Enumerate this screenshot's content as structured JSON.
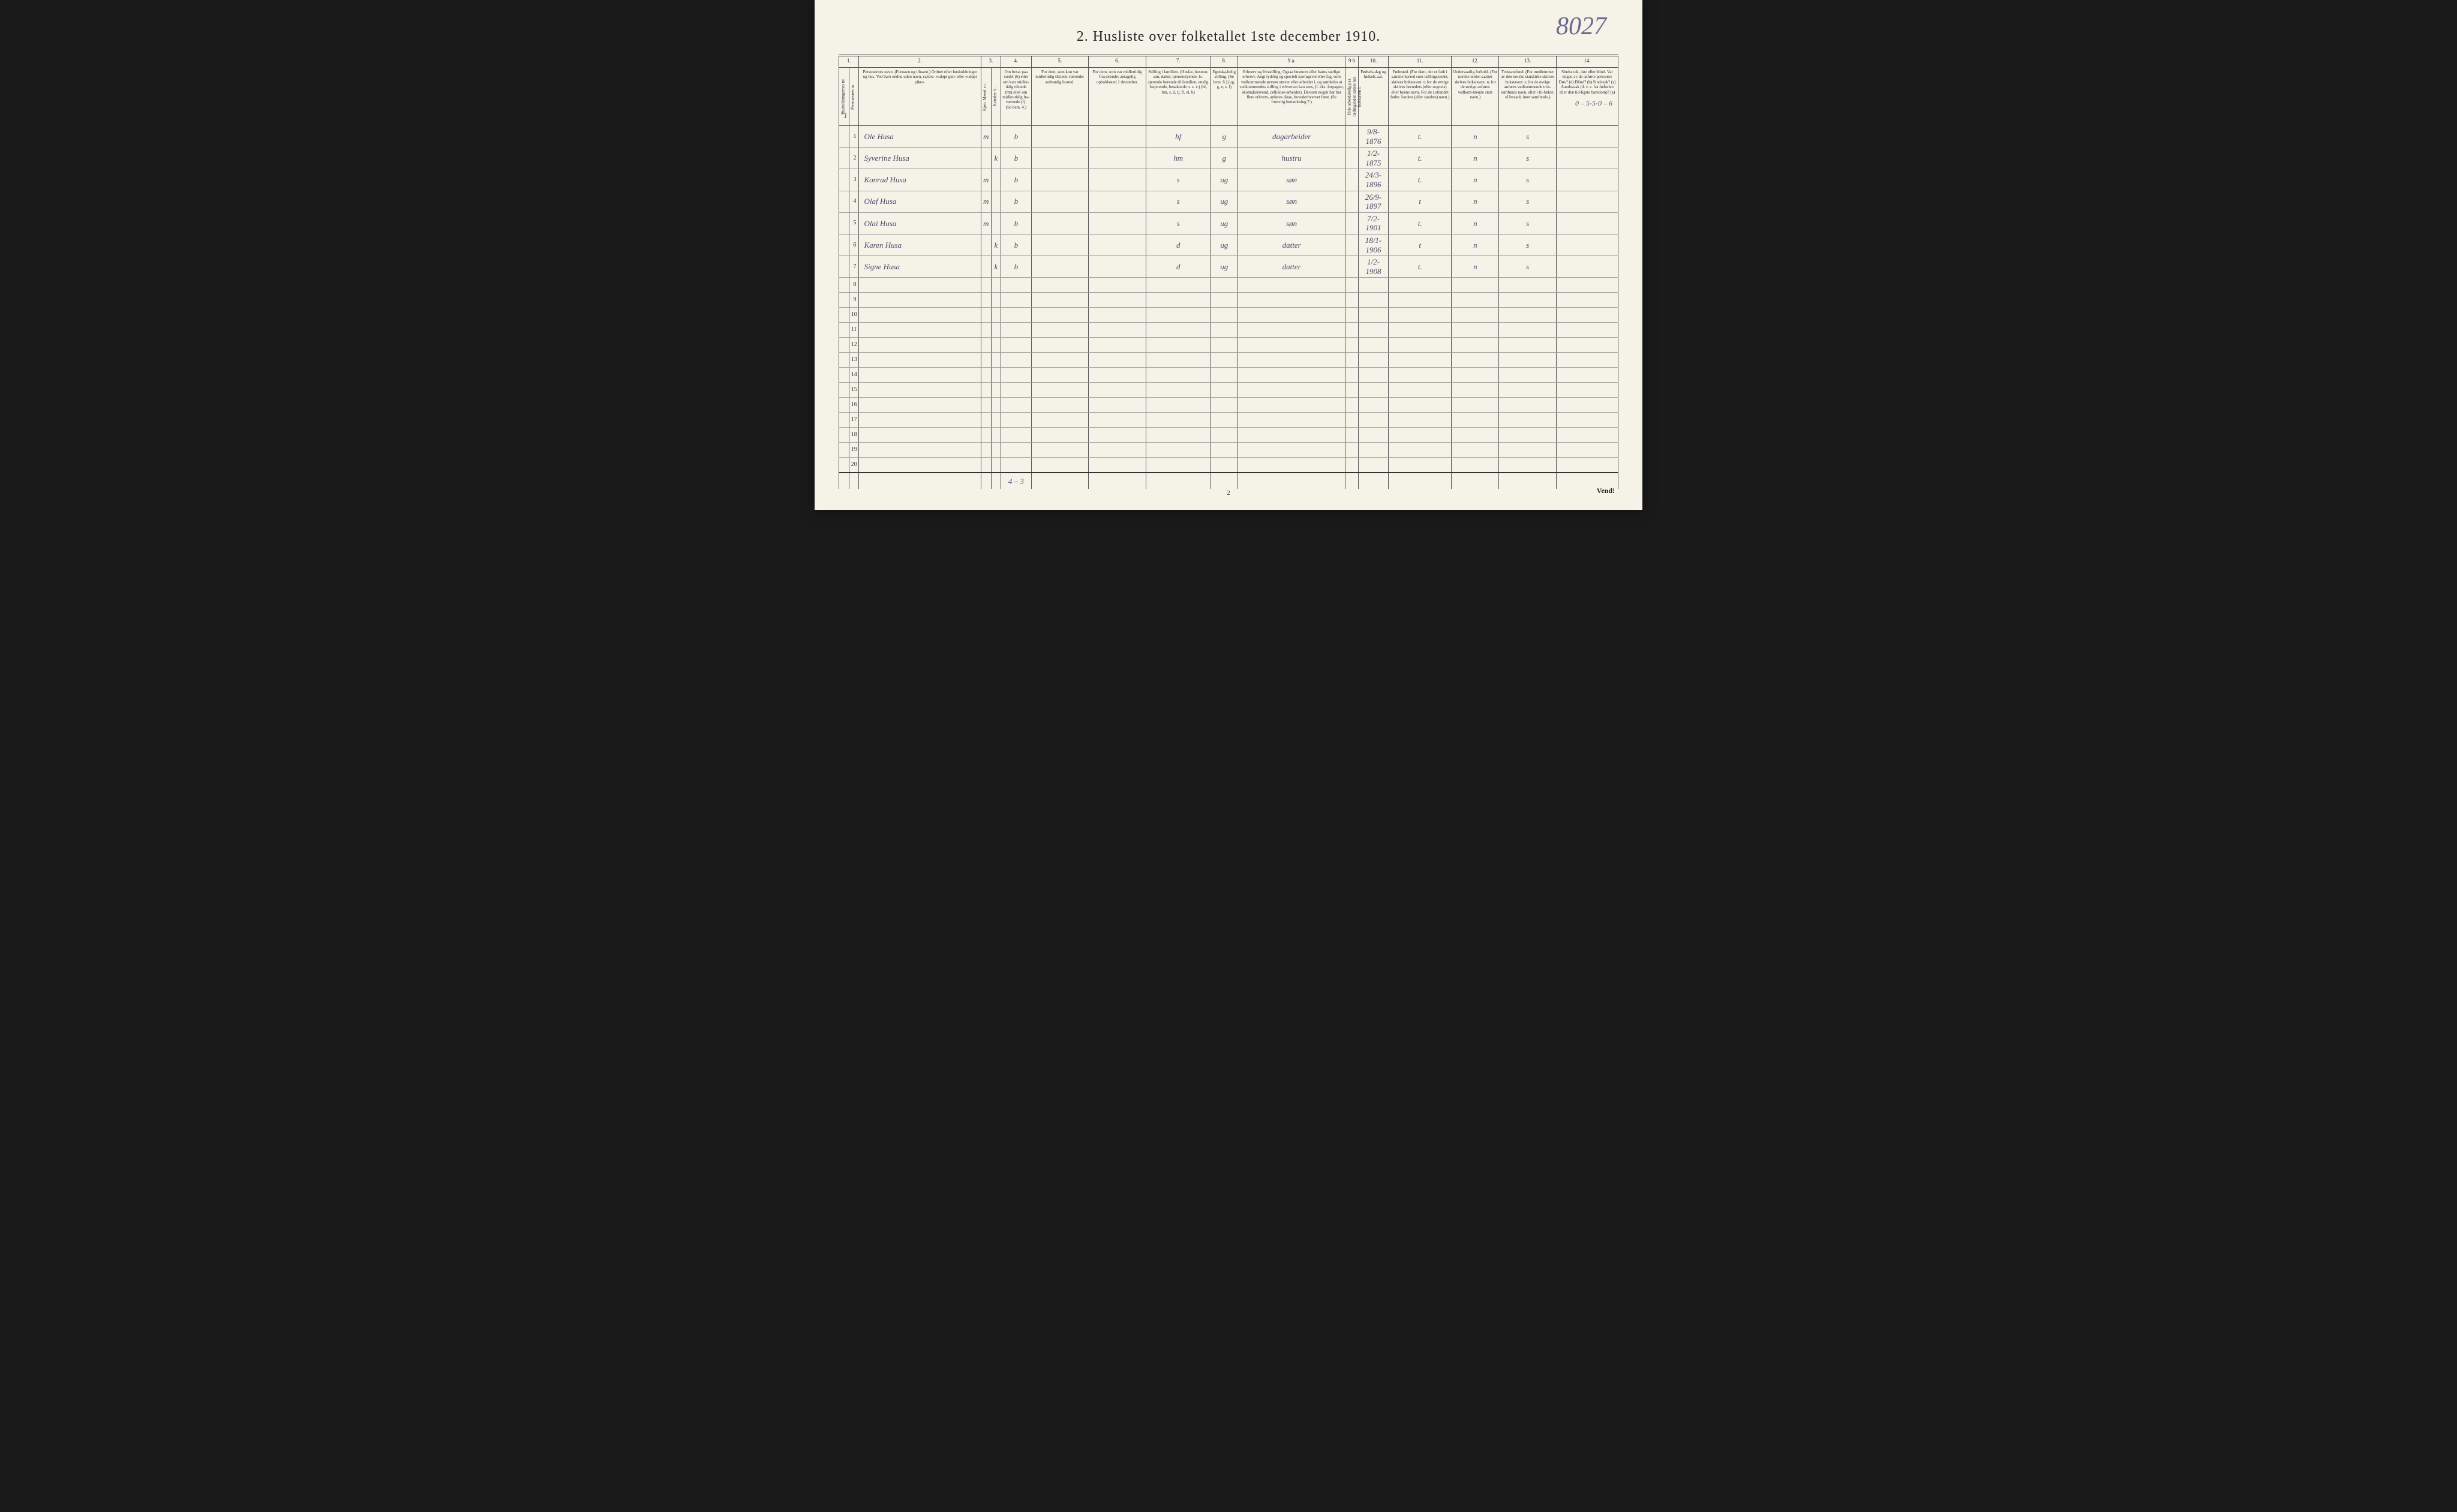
{
  "title": "2.  Husliste over folketallet 1ste december 1910.",
  "handwritten_topright": "8027",
  "hand_above_row1": "0 – 5-5-0 – 6",
  "page_number": "2",
  "vend": "Vend!",
  "household_mark": "1",
  "totals_note": "4 – 3",
  "column_numbers": [
    "1.",
    "",
    "2.",
    "3.",
    "",
    "4.",
    "5.",
    "6.",
    "7.",
    "8.",
    "9 a.",
    "9 b",
    "10.",
    "11.",
    "12.",
    "13.",
    "14."
  ],
  "column_headers": [
    "Husholdningernes nr.",
    "Personernes nr.",
    "Personernes navn.\n(Fornavn og tilnavn.)\nOrdnet efter husholdninger og hus.\nVed barn endnu uden navn, sættes: «udøpt gut» eller «udøpt pike».",
    "Kjøn.\nMænd.\nm.",
    "Kvinder.\nk.",
    "Om bosat paa stedet (b) eller om kun midler-tidig tilstede (mt) eller om midler-tidig fra-værende (f).\n(Se bem. 4.)",
    "For dem, som kun var midlertidig tilstede-værende:\nsedvanlig bosted.",
    "For dem, som var midlertidig fraværende:\nantagelig opholdssted 1 december.",
    "Stilling i familien.\n(Husfar, husmor, søn, datter, tjenestetyende, lo-sjerende hørende til familien, enslig losjerende, besøkende o. s. v.)\n(hf, hm, s, d, tj, fl, el, b)",
    "Egteska-belig stilling.\n(Se bem. 6.)\n(ug, g, e, s, f)",
    "Erhverv og livsstilling.\nOgsaa husmors eller barns særlige erhverv.\nAngi tydelig og specielt næringsvei eller fag, som vedkommende person utøver eller arbeider i, og samledes at vedkommendes stilling i erhvervet kan sees, (f. eks. forpagter, skomakersvend, cellulose-arbeider). Dersom nogen har har flere erhverv, anføres disse, hovederhvervet først.\n(Se forøvrig bemerkning 7.)",
    "Hvis arbeidsledig paa tællingstiden sættes her bokstaven l.",
    "Fødsels-dag og fødsels-aar.",
    "Fødested.\n(For dem, der er født i samme herred som tællingsstedet, skrives bokstaven: t; for de øvrige skrives herredets (eller sognets) eller byens navn.\nFor de i utlandet fødte: landets (eller stædets) navn.)",
    "Undersaatlig forhold.\n(For norske under-saatter skrives bokstaven: n; for de øvrige anføres vedkom-mende stats navn.)",
    "Trossamfund.\n(For medlemmer av den norske statskirke skrives bokstaven: s; for de øvrige anføres vedkommende tros-samfunds navn, eller i til-fælde: «Uttraadt, intet samfund».)",
    "Sindssvak, døv eller blind.\nVar nogen av de anførte personer:\nDøv? (d)\nBlind? (b)\nSindssyk? (s)\nAandssvak (d. v. s. fra fødselen eller den tid-ligste barndom)? (a)"
  ],
  "rows": [
    {
      "num": "1",
      "name": "Ole Husa",
      "sex_m": "m",
      "sex_k": "",
      "bosat": "b",
      "col5": "",
      "col6": "",
      "familien": "hf",
      "egt": "g",
      "erhverv": "dagarbeider",
      "col9b": "",
      "fodsel": "9/8-1876",
      "fodested": "t.",
      "under": "n",
      "tros": "s",
      "sinds": ""
    },
    {
      "num": "2",
      "name": "Syverine Husa",
      "sex_m": "",
      "sex_k": "k",
      "bosat": "b",
      "col5": "",
      "col6": "",
      "familien": "hm",
      "egt": "g",
      "erhverv": "hustru",
      "col9b": "",
      "fodsel": "1/2-1875",
      "fodested": "t.",
      "under": "n",
      "tros": "s",
      "sinds": ""
    },
    {
      "num": "3",
      "name": "Konrad Husa",
      "sex_m": "m",
      "sex_k": "",
      "bosat": "b",
      "col5": "",
      "col6": "",
      "familien": "s",
      "egt": "ug",
      "erhverv": "søn",
      "col9b": "",
      "fodsel": "24/3-1896",
      "fodested": "t.",
      "under": "n",
      "tros": "s",
      "sinds": ""
    },
    {
      "num": "4",
      "name": "Olaf Husa",
      "sex_m": "m",
      "sex_k": "",
      "bosat": "b",
      "col5": "",
      "col6": "",
      "familien": "s",
      "egt": "ug",
      "erhverv": "søn",
      "col9b": "",
      "fodsel": "26/9-1897",
      "fodested": "t",
      "under": "n",
      "tros": "s",
      "sinds": ""
    },
    {
      "num": "5",
      "name": "Olai Husa",
      "sex_m": "m",
      "sex_k": "",
      "bosat": "b",
      "col5": "",
      "col6": "",
      "familien": "s",
      "egt": "ug",
      "erhverv": "søn",
      "col9b": "",
      "fodsel": "7/2-1901",
      "fodested": "t.",
      "under": "n",
      "tros": "s",
      "sinds": ""
    },
    {
      "num": "6",
      "name": "Karen Husa",
      "sex_m": "",
      "sex_k": "k",
      "bosat": "b",
      "col5": "",
      "col6": "",
      "familien": "d",
      "egt": "ug",
      "erhverv": "datter",
      "col9b": "",
      "fodsel": "18/1-1906",
      "fodested": "t",
      "under": "n",
      "tros": "s",
      "sinds": ""
    },
    {
      "num": "7",
      "name": "Signe Husa",
      "sex_m": "",
      "sex_k": "k",
      "bosat": "b",
      "col5": "",
      "col6": "",
      "familien": "d",
      "egt": "ug",
      "erhverv": "datter",
      "col9b": "",
      "fodsel": "1/2-1908",
      "fodested": "t.",
      "under": "n",
      "tros": "s",
      "sinds": ""
    },
    {
      "num": "8"
    },
    {
      "num": "9"
    },
    {
      "num": "10"
    },
    {
      "num": "11"
    },
    {
      "num": "12"
    },
    {
      "num": "13"
    },
    {
      "num": "14"
    },
    {
      "num": "15"
    },
    {
      "num": "16"
    },
    {
      "num": "17"
    },
    {
      "num": "18"
    },
    {
      "num": "19"
    },
    {
      "num": "20"
    }
  ]
}
